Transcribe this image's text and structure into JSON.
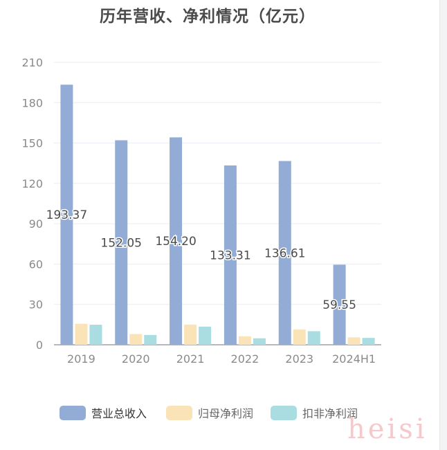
{
  "chart_data": {
    "type": "bar",
    "title": "历年营收、净利情况（亿元）",
    "categories": [
      "2019",
      "2020",
      "2021",
      "2022",
      "2023",
      "2024H1"
    ],
    "ylim": [
      0,
      210
    ],
    "yticks": [
      0,
      30,
      60,
      90,
      120,
      150,
      180,
      210
    ],
    "grid": true,
    "legend_position": "bottom",
    "series": [
      {
        "name": "营业总收入",
        "color": "#92acd6",
        "values": [
          193.37,
          152.05,
          154.2,
          133.31,
          136.61,
          59.55
        ],
        "labels": [
          "193.37",
          "152.05",
          "154.20",
          "133.31",
          "136.61",
          "59.55"
        ]
      },
      {
        "name": "归母净利润",
        "color": "#fbe3b8",
        "values": [
          15.6,
          8.0,
          15.0,
          6.3,
          11.3,
          5.5
        ]
      },
      {
        "name": "扣非净利润",
        "color": "#aadde1",
        "values": [
          14.9,
          7.3,
          13.5,
          4.8,
          10.1,
          5.1
        ]
      }
    ]
  },
  "watermark": "heisi"
}
